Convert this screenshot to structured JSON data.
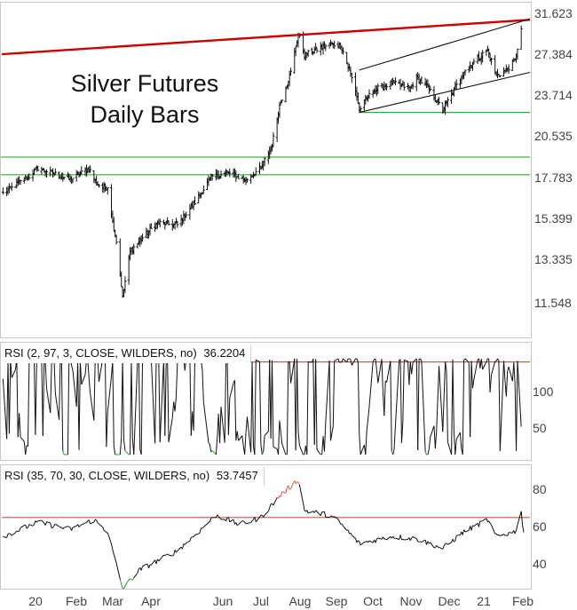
{
  "chart_data": [
    {
      "type": "ohlc",
      "title": "Silver Futures\nDaily Bars",
      "title_lines": [
        "Silver Futures",
        "Daily Bars"
      ],
      "y_ticks": [
        "31.623",
        "27.384",
        "23.714",
        "20.535",
        "17.783",
        "15.399",
        "13.335",
        "11.548"
      ],
      "y_tick_values": [
        31.623,
        27.384,
        23.714,
        20.535,
        17.783,
        15.399,
        13.335,
        11.548
      ],
      "ylim": [
        10.5,
        32.2
      ],
      "scale": "log",
      "x_ticks": [
        "20",
        "Feb",
        "Mar",
        "Apr",
        "Jun",
        "Jul",
        "Aug",
        "Sep",
        "Oct",
        "Nov",
        "Dec",
        "21",
        "Feb"
      ],
      "x_range": [
        "2019-12-12",
        "2021-02-08"
      ],
      "closes_sampled": [
        [
          "2019-12-13",
          17.0
        ],
        [
          "2020-01-03",
          18.0
        ],
        [
          "2020-01-10",
          18.5
        ],
        [
          "2020-01-22",
          18.2
        ],
        [
          "2020-02-05",
          17.8
        ],
        [
          "2020-02-20",
          18.5
        ],
        [
          "2020-02-26",
          17.6
        ],
        [
          "2020-03-02",
          17.3
        ],
        [
          "2020-03-06",
          17.4
        ],
        [
          "2020-03-10",
          15.5
        ],
        [
          "2020-03-13",
          14.5
        ],
        [
          "2020-03-18",
          12.0
        ],
        [
          "2020-03-24",
          14.0
        ],
        [
          "2020-04-02",
          14.6
        ],
        [
          "2020-04-15",
          15.4
        ],
        [
          "2020-05-01",
          15.3
        ],
        [
          "2020-05-15",
          16.5
        ],
        [
          "2020-05-29",
          18.0
        ],
        [
          "2020-06-10",
          18.2
        ],
        [
          "2020-06-25",
          17.8
        ],
        [
          "2020-07-07",
          18.5
        ],
        [
          "2020-07-16",
          20.0
        ],
        [
          "2020-07-22",
          22.8
        ],
        [
          "2020-07-31",
          25.5
        ],
        [
          "2020-08-06",
          29.0
        ],
        [
          "2020-08-11",
          27.0
        ],
        [
          "2020-08-20",
          27.5
        ],
        [
          "2020-09-01",
          28.0
        ],
        [
          "2020-09-09",
          28.0
        ],
        [
          "2020-09-21",
          24.0
        ],
        [
          "2020-09-24",
          22.5
        ],
        [
          "2020-10-05",
          24.0
        ],
        [
          "2020-10-20",
          24.6
        ],
        [
          "2020-11-04",
          24.2
        ],
        [
          "2020-11-09",
          25.0
        ],
        [
          "2020-11-16",
          24.5
        ],
        [
          "2020-11-30",
          22.5
        ],
        [
          "2020-12-10",
          24.2
        ],
        [
          "2020-12-17",
          25.6
        ],
        [
          "2021-01-05",
          27.5
        ],
        [
          "2021-01-12",
          25.2
        ],
        [
          "2021-01-20",
          25.7
        ],
        [
          "2021-01-27",
          26.5
        ],
        [
          "2021-02-01",
          29.5
        ]
      ],
      "trend_lines": [
        {
          "color": "#cc0000",
          "points": [
            [
              "2019-12-12",
              27.1
            ],
            [
              "2021-02-08",
              30.4
            ]
          ]
        },
        {
          "color": "#111111",
          "points": [
            [
              "2020-09-24",
              25.7
            ],
            [
              "2021-02-08",
              30.5
            ]
          ]
        },
        {
          "color": "#111111",
          "points": [
            [
              "2020-09-24",
              22.3
            ],
            [
              "2021-02-08",
              25.5
            ]
          ]
        }
      ],
      "horizontal_lines": [
        {
          "color": "#33aa33",
          "value": 19.2
        },
        {
          "color": "#33aa33",
          "value": 18.1
        },
        {
          "color": "#33aa33",
          "value": 22.3,
          "from": "2020-09-24"
        }
      ]
    },
    {
      "type": "line",
      "title": "RSI (2, 97, 3, CLOSE, WILDERS, no)",
      "last_value": "36.2204",
      "y_ticks": [
        "100",
        "50"
      ],
      "y_tick_values": [
        100,
        50
      ],
      "ylim": [
        5,
        115
      ],
      "reference_lines": [
        {
          "color": "#d9534f",
          "value": 97
        }
      ],
      "range": [
        10,
        100
      ],
      "last_point": 36.2204
    },
    {
      "type": "line",
      "title": "RSI (35, 70, 30, CLOSE, WILDERS, no)",
      "last_value": "53.7457",
      "y_ticks": [
        "80",
        "60",
        "40"
      ],
      "y_tick_values": [
        80,
        60,
        40
      ],
      "ylim": [
        30,
        82
      ],
      "reference_lines": [
        {
          "color": "#d9534f",
          "value": 60
        }
      ],
      "x_ticks": [
        "20",
        "Feb",
        "Mar",
        "Apr",
        "Jun",
        "Jul",
        "Aug",
        "Sep",
        "Oct",
        "Nov",
        "Dec",
        "21",
        "Feb"
      ],
      "samples": [
        [
          "2019-12-13",
          52
        ],
        [
          "2020-01-10",
          58
        ],
        [
          "2020-02-05",
          55
        ],
        [
          "2020-02-24",
          59
        ],
        [
          "2020-03-06",
          54
        ],
        [
          "2020-03-18",
          30
        ],
        [
          "2020-04-01",
          38
        ],
        [
          "2020-05-01",
          46
        ],
        [
          "2020-05-20",
          55
        ],
        [
          "2020-06-01",
          61
        ],
        [
          "2020-06-20",
          57
        ],
        [
          "2020-07-07",
          60
        ],
        [
          "2020-07-22",
          69
        ],
        [
          "2020-08-06",
          76
        ],
        [
          "2020-08-11",
          63
        ],
        [
          "2020-08-31",
          61
        ],
        [
          "2020-09-08",
          58
        ],
        [
          "2020-09-24",
          49
        ],
        [
          "2020-10-20",
          52
        ],
        [
          "2020-11-09",
          51
        ],
        [
          "2020-11-30",
          47
        ],
        [
          "2020-12-17",
          54
        ],
        [
          "2021-01-05",
          59
        ],
        [
          "2021-01-12",
          52
        ],
        [
          "2021-01-27",
          54
        ],
        [
          "2021-02-01",
          62
        ],
        [
          "2021-02-03",
          53.7457
        ]
      ]
    }
  ]
}
